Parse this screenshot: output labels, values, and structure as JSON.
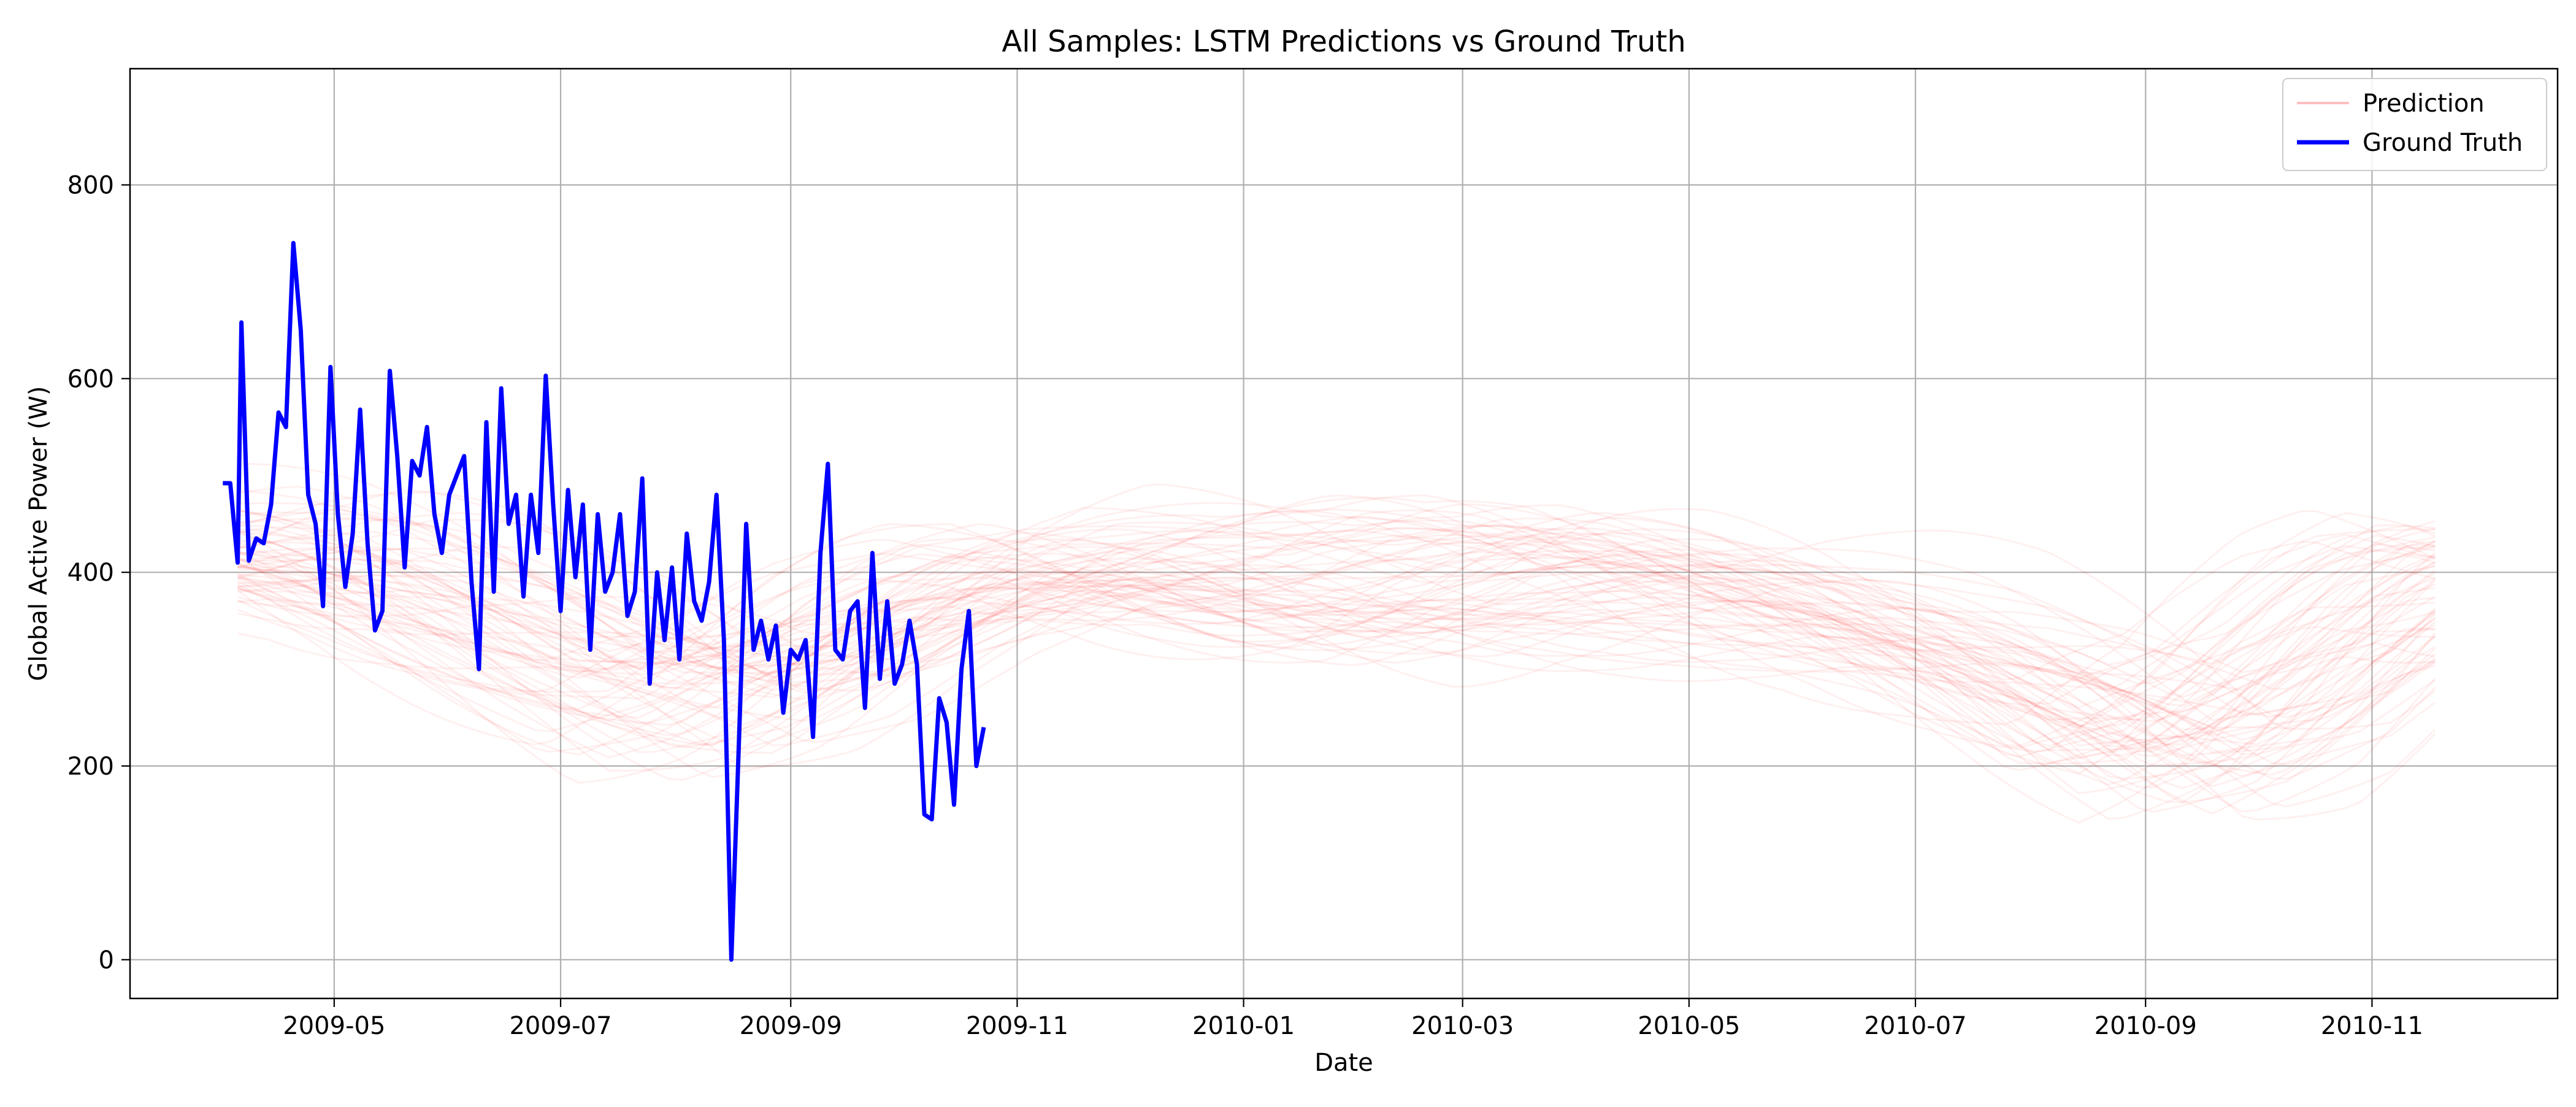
{
  "chart_data": {
    "type": "line",
    "title": "All Samples: LSTM Predictions vs Ground Truth",
    "xlabel": "Date",
    "ylabel": "Global Active Power (W)",
    "xlim": [
      "2009-03-07",
      "2010-12-21"
    ],
    "ylim": [
      -40,
      920
    ],
    "xticks": [
      "2009-05",
      "2009-07",
      "2009-09",
      "2009-11",
      "2010-01",
      "2010-03",
      "2010-05",
      "2010-07",
      "2010-09",
      "2010-11"
    ],
    "yticks": [
      0,
      200,
      400,
      600,
      800
    ],
    "grid": true,
    "legend": "top-right",
    "series": [
      {
        "name": "Prediction",
        "color": "#ff0000",
        "opacity": 0.06,
        "note_visual": "many overlapping faint prediction curves forming a red band",
        "band_center": [
          [
            "2009-04-05",
            420
          ],
          [
            "2009-05-01",
            410
          ],
          [
            "2009-06-01",
            370
          ],
          [
            "2009-07-01",
            320
          ],
          [
            "2009-08-01",
            270
          ],
          [
            "2009-09-01",
            300
          ],
          [
            "2009-10-01",
            360
          ],
          [
            "2009-11-01",
            400
          ],
          [
            "2009-12-01",
            400
          ],
          [
            "2010-01-01",
            390
          ],
          [
            "2010-02-01",
            380
          ],
          [
            "2010-03-01",
            400
          ],
          [
            "2010-04-01",
            400
          ],
          [
            "2010-05-01",
            385
          ],
          [
            "2010-06-01",
            360
          ],
          [
            "2010-07-01",
            330
          ],
          [
            "2010-08-01",
            280
          ],
          [
            "2010-09-01",
            220
          ],
          [
            "2010-10-01",
            260
          ],
          [
            "2010-11-01",
            360
          ],
          [
            "2010-11-20",
            400
          ]
        ]
      },
      {
        "name": "Ground Truth",
        "color": "#0000ff",
        "points": [
          [
            "2009-04-01",
            492
          ],
          [
            "2009-04-03",
            492
          ],
          [
            "2009-04-05",
            410
          ],
          [
            "2009-04-06",
            658
          ],
          [
            "2009-04-08",
            412
          ],
          [
            "2009-04-10",
            435
          ],
          [
            "2009-04-12",
            430
          ],
          [
            "2009-04-14",
            470
          ],
          [
            "2009-04-16",
            565
          ],
          [
            "2009-04-18",
            550
          ],
          [
            "2009-04-20",
            740
          ],
          [
            "2009-04-22",
            650
          ],
          [
            "2009-04-24",
            480
          ],
          [
            "2009-04-26",
            450
          ],
          [
            "2009-04-28",
            365
          ],
          [
            "2009-04-30",
            612
          ],
          [
            "2009-05-02",
            460
          ],
          [
            "2009-05-04",
            385
          ],
          [
            "2009-05-06",
            440
          ],
          [
            "2009-05-08",
            568
          ],
          [
            "2009-05-10",
            430
          ],
          [
            "2009-05-12",
            340
          ],
          [
            "2009-05-14",
            360
          ],
          [
            "2009-05-16",
            608
          ],
          [
            "2009-05-18",
            520
          ],
          [
            "2009-05-20",
            405
          ],
          [
            "2009-05-22",
            515
          ],
          [
            "2009-05-24",
            500
          ],
          [
            "2009-05-26",
            550
          ],
          [
            "2009-05-28",
            460
          ],
          [
            "2009-05-30",
            420
          ],
          [
            "2009-06-01",
            480
          ],
          [
            "2009-06-03",
            500
          ],
          [
            "2009-06-05",
            520
          ],
          [
            "2009-06-07",
            390
          ],
          [
            "2009-06-09",
            300
          ],
          [
            "2009-06-11",
            555
          ],
          [
            "2009-06-13",
            380
          ],
          [
            "2009-06-15",
            590
          ],
          [
            "2009-06-17",
            450
          ],
          [
            "2009-06-19",
            480
          ],
          [
            "2009-06-21",
            375
          ],
          [
            "2009-06-23",
            480
          ],
          [
            "2009-06-25",
            420
          ],
          [
            "2009-06-27",
            603
          ],
          [
            "2009-06-29",
            470
          ],
          [
            "2009-07-01",
            360
          ],
          [
            "2009-07-03",
            485
          ],
          [
            "2009-07-05",
            395
          ],
          [
            "2009-07-07",
            470
          ],
          [
            "2009-07-09",
            320
          ],
          [
            "2009-07-11",
            460
          ],
          [
            "2009-07-13",
            380
          ],
          [
            "2009-07-15",
            400
          ],
          [
            "2009-07-17",
            460
          ],
          [
            "2009-07-19",
            355
          ],
          [
            "2009-07-21",
            380
          ],
          [
            "2009-07-23",
            497
          ],
          [
            "2009-07-25",
            285
          ],
          [
            "2009-07-27",
            400
          ],
          [
            "2009-07-29",
            330
          ],
          [
            "2009-07-31",
            405
          ],
          [
            "2009-08-02",
            310
          ],
          [
            "2009-08-04",
            440
          ],
          [
            "2009-08-06",
            370
          ],
          [
            "2009-08-08",
            350
          ],
          [
            "2009-08-10",
            390
          ],
          [
            "2009-08-12",
            480
          ],
          [
            "2009-08-14",
            330
          ],
          [
            "2009-08-16",
            0
          ],
          [
            "2009-08-18",
            220
          ],
          [
            "2009-08-20",
            450
          ],
          [
            "2009-08-22",
            320
          ],
          [
            "2009-08-24",
            350
          ],
          [
            "2009-08-26",
            310
          ],
          [
            "2009-08-28",
            345
          ],
          [
            "2009-08-30",
            255
          ],
          [
            "2009-09-01",
            320
          ],
          [
            "2009-09-03",
            310
          ],
          [
            "2009-09-05",
            330
          ],
          [
            "2009-09-07",
            230
          ],
          [
            "2009-09-09",
            420
          ],
          [
            "2009-09-11",
            512
          ],
          [
            "2009-09-13",
            320
          ],
          [
            "2009-09-15",
            310
          ],
          [
            "2009-09-17",
            360
          ],
          [
            "2009-09-19",
            370
          ],
          [
            "2009-09-21",
            260
          ],
          [
            "2009-09-23",
            420
          ],
          [
            "2009-09-25",
            290
          ],
          [
            "2009-09-27",
            370
          ],
          [
            "2009-09-29",
            285
          ],
          [
            "2009-10-01",
            305
          ],
          [
            "2009-10-03",
            350
          ],
          [
            "2009-10-05",
            305
          ],
          [
            "2009-10-07",
            150
          ],
          [
            "2009-10-09",
            145
          ],
          [
            "2009-10-11",
            270
          ],
          [
            "2009-10-13",
            245
          ],
          [
            "2009-10-15",
            160
          ],
          [
            "2009-10-17",
            300
          ],
          [
            "2009-10-19",
            360
          ],
          [
            "2009-10-21",
            200
          ],
          [
            "2009-10-23",
            240
          ]
        ]
      }
    ]
  }
}
